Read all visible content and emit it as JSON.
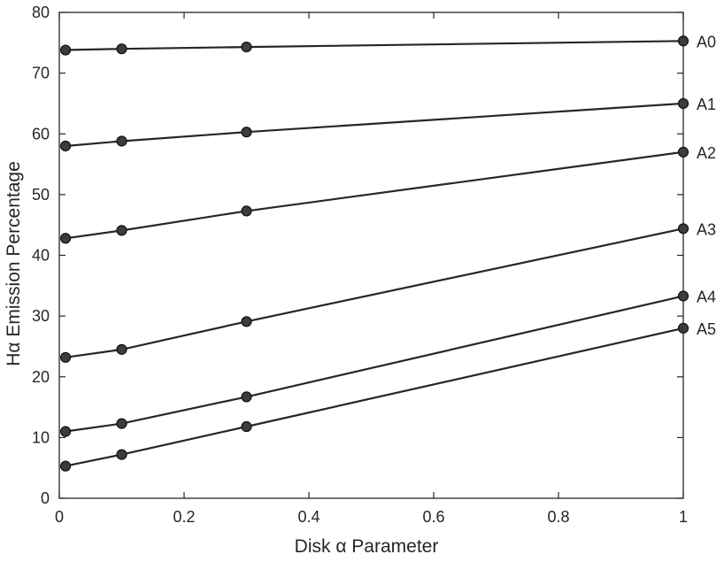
{
  "chart_data": {
    "type": "line",
    "title": "",
    "xlabel": "Disk  α Parameter",
    "ylabel": "Hα Emission Percentage",
    "xlim": [
      0,
      1
    ],
    "ylim": [
      0,
      80
    ],
    "xticks": [
      0,
      0.2,
      0.4,
      0.6,
      0.8,
      1
    ],
    "xtick_labels": [
      "0",
      "0.2",
      "0.4",
      "0.6",
      "0.8",
      "1"
    ],
    "yticks": [
      0,
      10,
      20,
      30,
      40,
      50,
      60,
      70,
      80
    ],
    "ytick_labels": [
      "0",
      "10",
      "20",
      "30",
      "40",
      "50",
      "60",
      "70",
      "80"
    ],
    "grid": false,
    "legend": "none (series labelled at right end)",
    "line_color": "#262626",
    "marker_color": "#3c3c3c",
    "x": [
      0.01,
      0.1,
      0.3,
      1.0
    ],
    "series": [
      {
        "name": "A0",
        "values": [
          73.8,
          74.0,
          74.3,
          75.3
        ]
      },
      {
        "name": "A1",
        "values": [
          58.0,
          58.8,
          60.3,
          65.0
        ]
      },
      {
        "name": "A2",
        "values": [
          42.8,
          44.1,
          47.3,
          57.0
        ]
      },
      {
        "name": "A3",
        "values": [
          23.2,
          24.5,
          29.1,
          44.4
        ]
      },
      {
        "name": "A4",
        "values": [
          11.0,
          12.3,
          16.7,
          33.3
        ]
      },
      {
        "name": "A5",
        "values": [
          5.3,
          7.2,
          11.8,
          28.0
        ]
      }
    ]
  }
}
